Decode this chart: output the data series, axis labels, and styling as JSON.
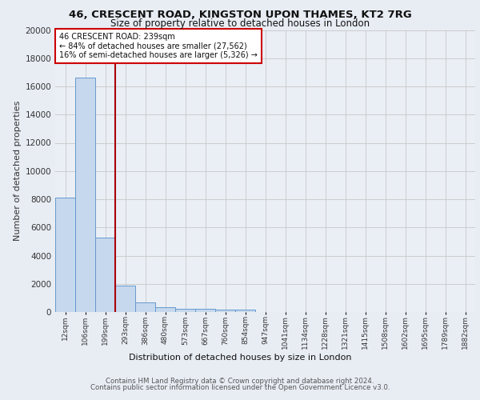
{
  "title_line1": "46, CRESCENT ROAD, KINGSTON UPON THAMES, KT2 7RG",
  "title_line2": "Size of property relative to detached houses in London",
  "xlabel": "Distribution of detached houses by size in London",
  "ylabel": "Number of detached properties",
  "footer_line1": "Contains HM Land Registry data © Crown copyright and database right 2024.",
  "footer_line2": "Contains public sector information licensed under the Open Government Licence v3.0.",
  "bin_labels": [
    "12sqm",
    "106sqm",
    "199sqm",
    "293sqm",
    "386sqm",
    "480sqm",
    "573sqm",
    "667sqm",
    "760sqm",
    "854sqm",
    "947sqm",
    "1041sqm",
    "1134sqm",
    "1228sqm",
    "1321sqm",
    "1415sqm",
    "1508sqm",
    "1602sqm",
    "1695sqm",
    "1789sqm",
    "1882sqm"
  ],
  "bar_heights": [
    8100,
    16600,
    5300,
    1850,
    700,
    330,
    230,
    200,
    190,
    165,
    0,
    0,
    0,
    0,
    0,
    0,
    0,
    0,
    0,
    0,
    0
  ],
  "bar_color": "#c5d8ed",
  "bar_edge_color": "#6699cc",
  "vline_x": 2.5,
  "annotation_text": "46 CRESCENT ROAD: 239sqm\n← 84% of detached houses are smaller (27,562)\n16% of semi-detached houses are larger (5,326) →",
  "annotation_box_color": "#ffffff",
  "annotation_box_edge_color": "#cc0000",
  "vline_color": "#aa0000",
  "ylim": [
    0,
    20000
  ],
  "yticks": [
    0,
    2000,
    4000,
    6000,
    8000,
    10000,
    12000,
    14000,
    16000,
    18000,
    20000
  ],
  "grid_color": "#cccccc",
  "bg_color": "#e8edf4",
  "plot_bg_color": "#eaeff6"
}
